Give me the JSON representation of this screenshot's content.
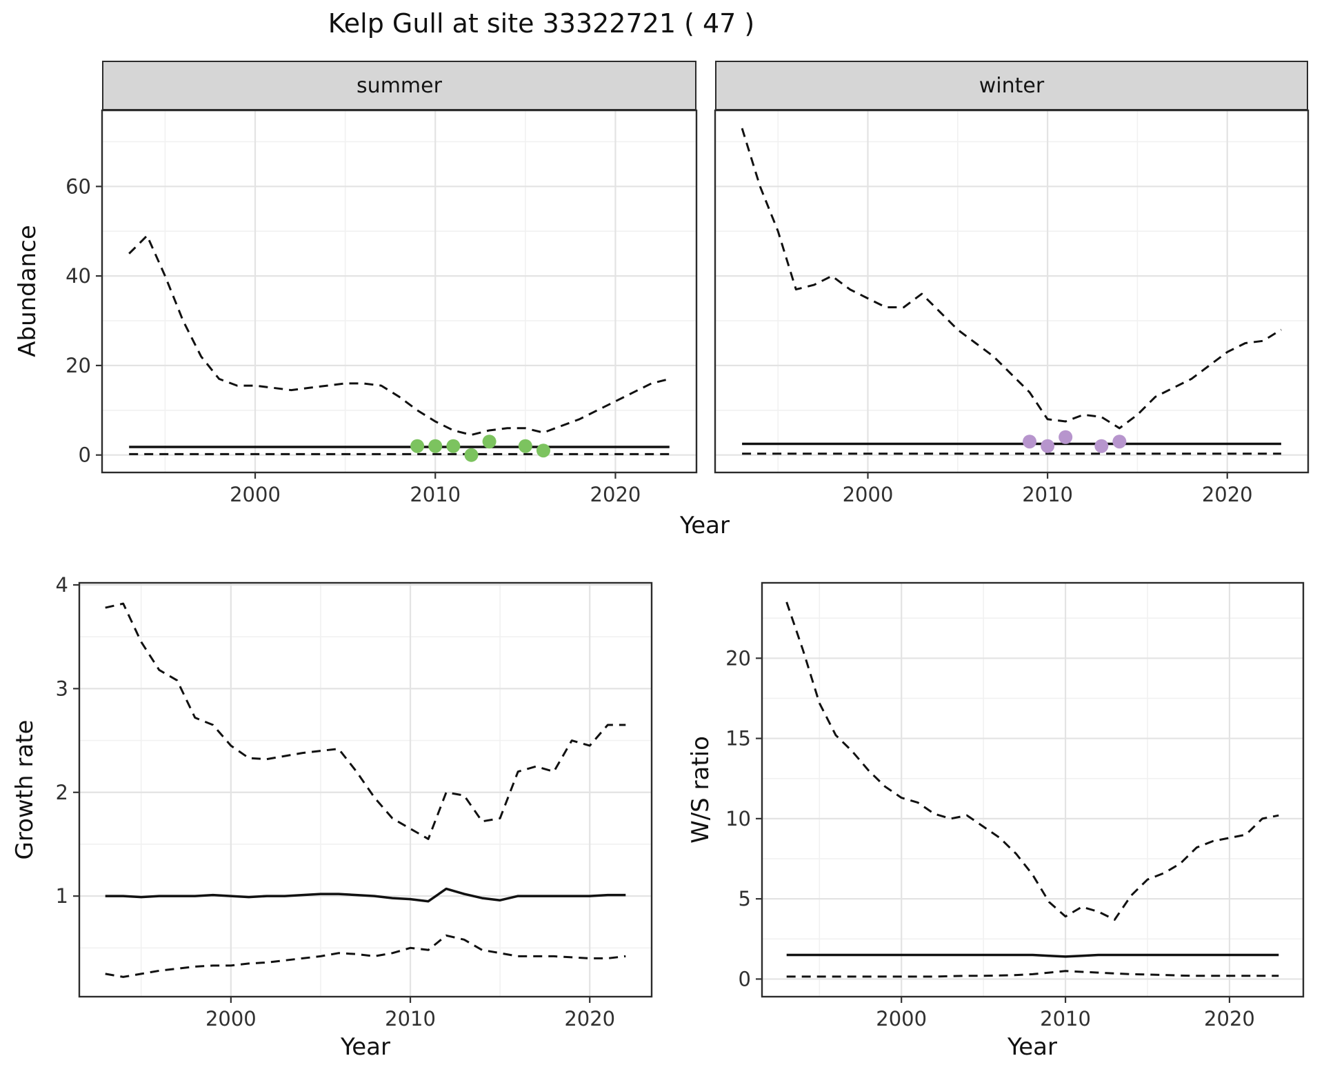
{
  "title": "Kelp Gull at site 33322721 ( 47 )",
  "colors": {
    "summer_points": "#7cc35f",
    "winter_points": "#b795cd",
    "line": "#111111",
    "strip_fill": "#d6d6d6"
  },
  "chart_data": [
    {
      "id": "abundance_summer",
      "type": "line",
      "facet": "summer",
      "xlabel": "Year",
      "ylabel": "Abundance",
      "xlim": [
        1991.5,
        2024.5
      ],
      "ylim": [
        -3.9,
        77
      ],
      "xticks": [
        2000,
        2010,
        2020
      ],
      "yticks": [
        0,
        20,
        40,
        60
      ],
      "x": [
        1993,
        1994,
        1995,
        1996,
        1997,
        1998,
        1999,
        2000,
        2001,
        2002,
        2003,
        2004,
        2005,
        2006,
        2007,
        2008,
        2009,
        2010,
        2011,
        2012,
        2013,
        2014,
        2015,
        2016,
        2017,
        2018,
        2019,
        2020,
        2021,
        2022,
        2023
      ],
      "series": [
        {
          "name": "upper_ci",
          "style": "dashed",
          "values": [
            45,
            49,
            40,
            30,
            22,
            17,
            15.5,
            15.5,
            15,
            14.5,
            15,
            15.5,
            16,
            16,
            15.5,
            13,
            10,
            7.5,
            5.5,
            4.5,
            5.5,
            6,
            6,
            5,
            6.5,
            8,
            10,
            12,
            14,
            16,
            17
          ]
        },
        {
          "name": "median",
          "style": "solid",
          "values": [
            1.8,
            1.8,
            1.8,
            1.8,
            1.8,
            1.8,
            1.8,
            1.8,
            1.8,
            1.8,
            1.8,
            1.8,
            1.8,
            1.8,
            1.8,
            1.8,
            1.8,
            1.8,
            1.8,
            1.8,
            1.8,
            1.8,
            1.8,
            1.8,
            1.8,
            1.8,
            1.8,
            1.8,
            1.8,
            1.8,
            1.8
          ]
        },
        {
          "name": "lower_ci",
          "style": "dashed",
          "values": [
            0.2,
            0.2,
            0.2,
            0.2,
            0.2,
            0.2,
            0.2,
            0.2,
            0.2,
            0.2,
            0.2,
            0.2,
            0.2,
            0.2,
            0.2,
            0.2,
            0.2,
            0.2,
            0.2,
            0.2,
            0.2,
            0.2,
            0.2,
            0.2,
            0.2,
            0.2,
            0.2,
            0.2,
            0.2,
            0.2,
            0.2
          ]
        }
      ],
      "points": {
        "name": "observed_counts",
        "color": "#7cc35f",
        "x": [
          2009,
          2010,
          2011,
          2012,
          2013,
          2015,
          2016
        ],
        "y": [
          2,
          2,
          2,
          0,
          3,
          2,
          1
        ]
      }
    },
    {
      "id": "abundance_winter",
      "type": "line",
      "facet": "winter",
      "xlabel": "Year",
      "ylabel": "Abundance",
      "xlim": [
        1991.5,
        2024.5
      ],
      "ylim": [
        -3.9,
        77
      ],
      "xticks": [
        2000,
        2010,
        2020
      ],
      "yticks": [
        0,
        20,
        40,
        60
      ],
      "x": [
        1993,
        1994,
        1995,
        1996,
        1997,
        1998,
        1999,
        2000,
        2001,
        2002,
        2003,
        2004,
        2005,
        2006,
        2007,
        2008,
        2009,
        2010,
        2011,
        2012,
        2013,
        2014,
        2015,
        2016,
        2017,
        2018,
        2019,
        2020,
        2021,
        2022,
        2023
      ],
      "series": [
        {
          "name": "upper_ci",
          "style": "dashed",
          "values": [
            73,
            60,
            50,
            37,
            38,
            40,
            37,
            35,
            33,
            33,
            36,
            32,
            28,
            25,
            22,
            18,
            14,
            8,
            7.5,
            9,
            8.5,
            6,
            9,
            13,
            15,
            17,
            20,
            23,
            25,
            25.5,
            28
          ]
        },
        {
          "name": "median",
          "style": "solid",
          "values": [
            2.5,
            2.5,
            2.5,
            2.5,
            2.5,
            2.5,
            2.5,
            2.5,
            2.5,
            2.5,
            2.5,
            2.5,
            2.5,
            2.5,
            2.5,
            2.5,
            2.5,
            2.5,
            2.5,
            2.5,
            2.5,
            2.5,
            2.5,
            2.5,
            2.5,
            2.5,
            2.5,
            2.5,
            2.5,
            2.5,
            2.5
          ]
        },
        {
          "name": "lower_ci",
          "style": "dashed",
          "values": [
            0.3,
            0.3,
            0.3,
            0.3,
            0.3,
            0.3,
            0.3,
            0.3,
            0.3,
            0.3,
            0.3,
            0.3,
            0.3,
            0.3,
            0.3,
            0.3,
            0.3,
            0.3,
            0.3,
            0.3,
            0.3,
            0.3,
            0.3,
            0.3,
            0.3,
            0.3,
            0.3,
            0.3,
            0.3,
            0.3,
            0.3
          ]
        }
      ],
      "points": {
        "name": "observed_counts",
        "color": "#b795cd",
        "x": [
          2009,
          2010,
          2011,
          2013,
          2014
        ],
        "y": [
          3,
          2,
          4,
          2,
          3
        ]
      }
    },
    {
      "id": "growth_rate",
      "type": "line",
      "xlabel": "Year",
      "ylabel": "Growth rate",
      "xlim": [
        1991.55,
        2023.45
      ],
      "ylim": [
        0.03,
        4.02
      ],
      "xticks": [
        2000,
        2010,
        2020
      ],
      "yticks": [
        1,
        2,
        3,
        4
      ],
      "x": [
        1993,
        1994,
        1995,
        1996,
        1997,
        1998,
        1999,
        2000,
        2001,
        2002,
        2003,
        2004,
        2005,
        2006,
        2007,
        2008,
        2009,
        2010,
        2011,
        2012,
        2013,
        2014,
        2015,
        2016,
        2017,
        2018,
        2019,
        2020,
        2021,
        2022
      ],
      "series": [
        {
          "name": "upper_ci",
          "style": "dashed",
          "values": [
            3.78,
            3.82,
            3.45,
            3.18,
            3.08,
            2.72,
            2.65,
            2.45,
            2.33,
            2.32,
            2.35,
            2.38,
            2.4,
            2.42,
            2.2,
            1.95,
            1.75,
            1.65,
            1.55,
            2.0,
            1.97,
            1.72,
            1.75,
            2.2,
            2.25,
            2.2,
            2.5,
            2.45,
            2.65,
            2.65
          ]
        },
        {
          "name": "median",
          "style": "solid",
          "values": [
            1.0,
            1.0,
            0.99,
            1.0,
            1.0,
            1.0,
            1.01,
            1.0,
            0.99,
            1.0,
            1.0,
            1.01,
            1.02,
            1.02,
            1.01,
            1.0,
            0.98,
            0.97,
            0.95,
            1.07,
            1.02,
            0.98,
            0.96,
            1.0,
            1.0,
            1.0,
            1.0,
            1.0,
            1.01,
            1.01
          ]
        },
        {
          "name": "lower_ci",
          "style": "dashed",
          "values": [
            0.25,
            0.22,
            0.25,
            0.28,
            0.3,
            0.32,
            0.33,
            0.33,
            0.35,
            0.36,
            0.38,
            0.4,
            0.42,
            0.45,
            0.44,
            0.42,
            0.45,
            0.5,
            0.48,
            0.62,
            0.58,
            0.48,
            0.45,
            0.42,
            0.42,
            0.42,
            0.41,
            0.4,
            0.4,
            0.42
          ]
        }
      ]
    },
    {
      "id": "ws_ratio",
      "type": "line",
      "xlabel": "Year",
      "ylabel": "W/S ratio",
      "xlim": [
        1991.5,
        2024.5
      ],
      "ylim": [
        -1.1,
        24.7
      ],
      "xticks": [
        2000,
        2010,
        2020
      ],
      "yticks": [
        0,
        5,
        10,
        15,
        20
      ],
      "x": [
        1993,
        1994,
        1995,
        1996,
        1997,
        1998,
        1999,
        2000,
        2001,
        2002,
        2003,
        2004,
        2005,
        2006,
        2007,
        2008,
        2009,
        2010,
        2011,
        2012,
        2013,
        2014,
        2015,
        2016,
        2017,
        2018,
        2019,
        2020,
        2021,
        2022,
        2023
      ],
      "series": [
        {
          "name": "upper_ci",
          "style": "dashed",
          "values": [
            23.5,
            20.5,
            17.2,
            15.2,
            14.2,
            13,
            12,
            11.3,
            11,
            10.3,
            10,
            10.2,
            9.5,
            8.8,
            7.8,
            6.5,
            4.8,
            3.9,
            4.5,
            4.2,
            3.7,
            5.2,
            6.2,
            6.6,
            7.2,
            8.2,
            8.6,
            8.8,
            9,
            10,
            10.2
          ]
        },
        {
          "name": "median",
          "style": "solid",
          "values": [
            1.5,
            1.5,
            1.5,
            1.5,
            1.5,
            1.5,
            1.5,
            1.5,
            1.5,
            1.5,
            1.5,
            1.5,
            1.5,
            1.5,
            1.5,
            1.5,
            1.45,
            1.4,
            1.45,
            1.5,
            1.5,
            1.5,
            1.5,
            1.5,
            1.5,
            1.5,
            1.5,
            1.5,
            1.5,
            1.5,
            1.5
          ]
        },
        {
          "name": "lower_ci",
          "style": "dashed",
          "values": [
            0.15,
            0.15,
            0.15,
            0.15,
            0.15,
            0.15,
            0.15,
            0.15,
            0.15,
            0.15,
            0.18,
            0.2,
            0.2,
            0.22,
            0.25,
            0.3,
            0.4,
            0.5,
            0.45,
            0.4,
            0.35,
            0.3,
            0.28,
            0.25,
            0.22,
            0.2,
            0.2,
            0.2,
            0.2,
            0.2,
            0.2
          ]
        }
      ]
    }
  ]
}
